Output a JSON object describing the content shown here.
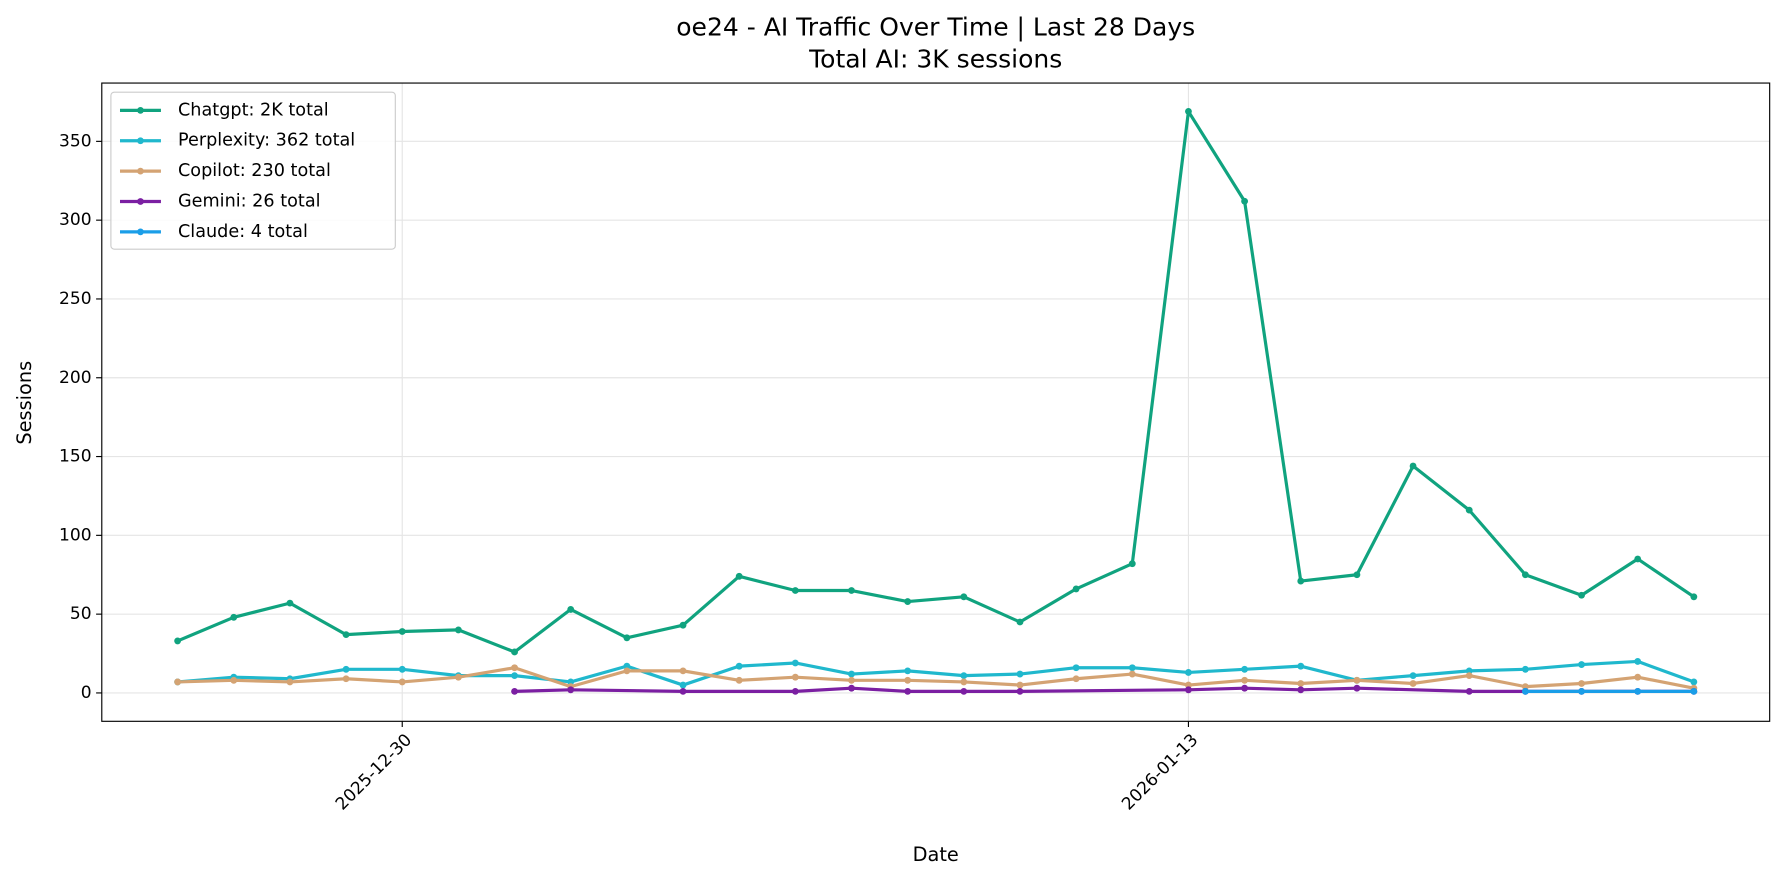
{
  "chart_data": {
    "type": "line",
    "title": "oe24 - AI Traffic Over Time | Last 28 Days",
    "subtitle": "Total AI: 3K sessions",
    "x_label": "Date",
    "y_label": "Sessions",
    "ylim": [
      -18,
      387
    ],
    "yticks": [
      0,
      50,
      100,
      150,
      200,
      250,
      300,
      350
    ],
    "xticks": [
      "2025-12-30",
      "2026-01-13"
    ],
    "grid": true,
    "legend": "upper-left",
    "series": [
      {
        "name": "Chatgpt: 2K total",
        "color": "#10a37f",
        "x": [
          "2025-12-26",
          "2025-12-27",
          "2025-12-28",
          "2025-12-29",
          "2025-12-30",
          "2025-12-31",
          "2026-01-01",
          "2026-01-02",
          "2026-01-03",
          "2026-01-04",
          "2026-01-05",
          "2026-01-06",
          "2026-01-07",
          "2026-01-08",
          "2026-01-09",
          "2026-01-10",
          "2026-01-11",
          "2026-01-12",
          "2026-01-13",
          "2026-01-14",
          "2026-01-15",
          "2026-01-16",
          "2026-01-17",
          "2026-01-18",
          "2026-01-19",
          "2026-01-20",
          "2026-01-21",
          "2026-01-22"
        ],
        "values": [
          33,
          48,
          57,
          37,
          39,
          40,
          26,
          53,
          35,
          43,
          74,
          65,
          65,
          58,
          61,
          45,
          66,
          82,
          369,
          312,
          71,
          75,
          144,
          116,
          75,
          62,
          85,
          61
        ]
      },
      {
        "name": "Perplexity: 362 total",
        "color": "#20b8cd",
        "x": [
          "2025-12-26",
          "2025-12-27",
          "2025-12-28",
          "2025-12-29",
          "2025-12-30",
          "2025-12-31",
          "2026-01-01",
          "2026-01-02",
          "2026-01-03",
          "2026-01-04",
          "2026-01-05",
          "2026-01-06",
          "2026-01-07",
          "2026-01-08",
          "2026-01-09",
          "2026-01-10",
          "2026-01-11",
          "2026-01-12",
          "2026-01-13",
          "2026-01-14",
          "2026-01-15",
          "2026-01-16",
          "2026-01-17",
          "2026-01-18",
          "2026-01-19",
          "2026-01-20",
          "2026-01-21",
          "2026-01-22"
        ],
        "values": [
          7,
          10,
          9,
          15,
          15,
          11,
          11,
          7,
          17,
          5,
          17,
          19,
          12,
          14,
          11,
          12,
          16,
          16,
          13,
          15,
          17,
          8,
          11,
          14,
          15,
          18,
          20,
          7
        ]
      },
      {
        "name": "Copilot: 230 total",
        "color": "#d4a373",
        "x": [
          "2025-12-26",
          "2025-12-27",
          "2025-12-28",
          "2025-12-29",
          "2025-12-30",
          "2025-12-31",
          "2026-01-01",
          "2026-01-02",
          "2026-01-03",
          "2026-01-04",
          "2026-01-05",
          "2026-01-06",
          "2026-01-07",
          "2026-01-08",
          "2026-01-09",
          "2026-01-10",
          "2026-01-11",
          "2026-01-12",
          "2026-01-13",
          "2026-01-14",
          "2026-01-15",
          "2026-01-16",
          "2026-01-17",
          "2026-01-18",
          "2026-01-19",
          "2026-01-20",
          "2026-01-21",
          "2026-01-22"
        ],
        "values": [
          7,
          8,
          7,
          9,
          7,
          10,
          16,
          4,
          14,
          14,
          8,
          10,
          8,
          8,
          7,
          5,
          9,
          12,
          5,
          8,
          6,
          8,
          6,
          11,
          4,
          6,
          10,
          3
        ]
      },
      {
        "name": "Gemini: 26 total",
        "color": "#7b1fa2",
        "x": [
          "2026-01-01",
          "2026-01-02",
          "2026-01-04",
          "2026-01-06",
          "2026-01-07",
          "2026-01-08",
          "2026-01-09",
          "2026-01-10",
          "2026-01-13",
          "2026-01-14",
          "2026-01-15",
          "2026-01-16",
          "2026-01-18",
          "2026-01-19",
          "2026-01-20",
          "2026-01-21",
          "2026-01-22"
        ],
        "values": [
          1,
          2,
          1,
          1,
          3,
          1,
          1,
          1,
          2,
          3,
          2,
          3,
          1,
          1,
          1,
          1,
          1
        ]
      },
      {
        "name": "Claude: 4 total",
        "color": "#1a9ee8",
        "x": [
          "2026-01-19",
          "2026-01-20",
          "2026-01-21",
          "2026-01-22"
        ],
        "values": [
          1,
          1,
          1,
          1
        ]
      }
    ]
  }
}
